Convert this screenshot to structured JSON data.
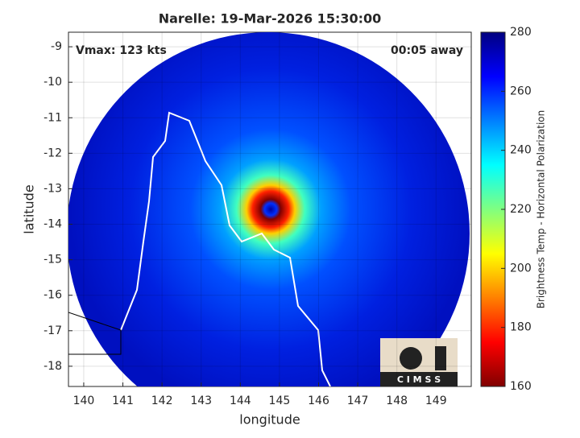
{
  "chart_data": {
    "type": "image",
    "title": "Narelle: 19-Mar-2026 15:30:00",
    "xlabel": "longitude",
    "ylabel": "latitude",
    "annotations": [
      "Vmax: 123 kts",
      "00:05 away"
    ],
    "logo": "C I M S S",
    "xlim": [
      139.61,
      149.9
    ],
    "ylim": [
      -18.57,
      -8.59
    ],
    "xticks": [
      140,
      141,
      142,
      143,
      144,
      145,
      146,
      147,
      148,
      149
    ],
    "yticks": [
      -9,
      -10,
      -11,
      -12,
      -13,
      -14,
      -15,
      -16,
      -17,
      -18
    ],
    "grid": true,
    "colorbar": {
      "label": "Brightness Temp - Horizontal Polarization",
      "lim": [
        160,
        280
      ],
      "ticks": [
        160,
        180,
        200,
        220,
        240,
        260,
        280
      ],
      "colormap": [
        "#800000",
        "#ff0000",
        "#ff8000",
        "#ffff00",
        "#80ff80",
        "#00ffff",
        "#0080ff",
        "#0000ff",
        "#000080"
      ]
    }
  }
}
